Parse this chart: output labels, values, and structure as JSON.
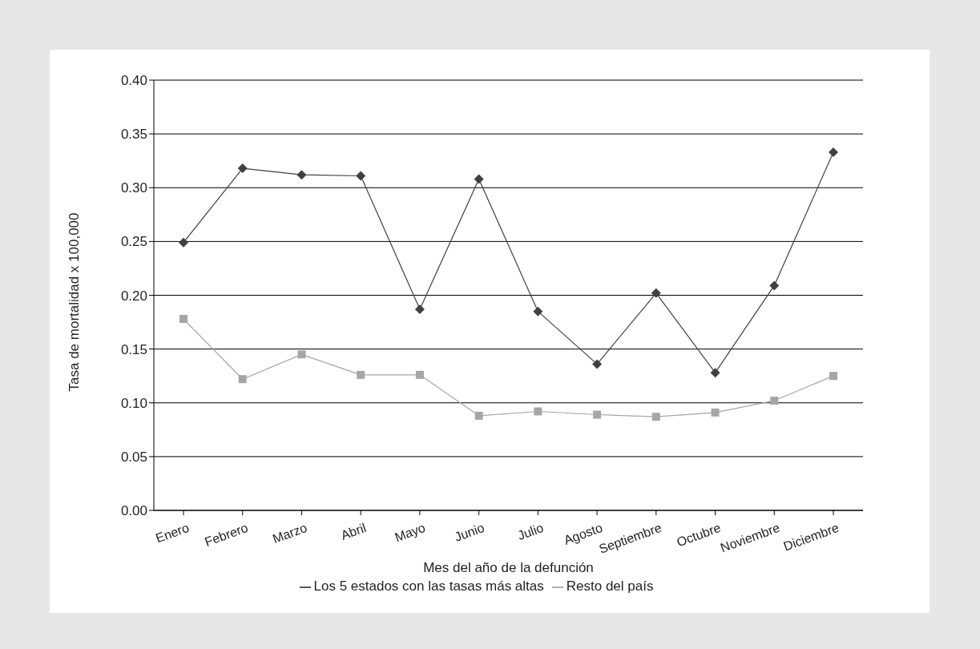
{
  "chart_data": {
    "type": "line",
    "xlabel": "Mes del año de la defunción",
    "ylabel": "Tasa de mortalidad x 100,000",
    "categories": [
      "Enero",
      "Febrero",
      "Marzo",
      "Abril",
      "Mayo",
      "Junio",
      "Julio",
      "Agosto",
      "Septiembre",
      "Octubre",
      "Noviembre",
      "Diciembre"
    ],
    "series": [
      {
        "name": "Los 5 estados con las tasas más altas",
        "color": "#404040",
        "marker": "diamond",
        "values": [
          0.249,
          0.318,
          0.312,
          0.311,
          0.187,
          0.308,
          0.185,
          0.136,
          0.202,
          0.128,
          0.209,
          0.333
        ]
      },
      {
        "name": "Resto del país",
        "color": "#a6a6a6",
        "marker": "square",
        "values": [
          0.178,
          0.122,
          0.145,
          0.126,
          0.126,
          0.088,
          0.092,
          0.089,
          0.087,
          0.091,
          0.102,
          0.125
        ]
      }
    ],
    "ylim": [
      0,
      0.4
    ],
    "yticks": [
      {
        "value": 0,
        "label": "0.00"
      },
      {
        "value": 0.05,
        "label": "0.05"
      },
      {
        "value": 0.1,
        "label": "0.10"
      },
      {
        "value": 0.15,
        "label": "0.15"
      },
      {
        "value": 0.2,
        "label": "0.20"
      },
      {
        "value": 0.25,
        "label": "0.25"
      },
      {
        "value": 0.3,
        "label": "0.30"
      },
      {
        "value": 0.35,
        "label": "0.35"
      },
      {
        "value": 0.4,
        "label": "0.40"
      }
    ],
    "grid": "y",
    "legend": "bottom",
    "line_style": "solid"
  }
}
